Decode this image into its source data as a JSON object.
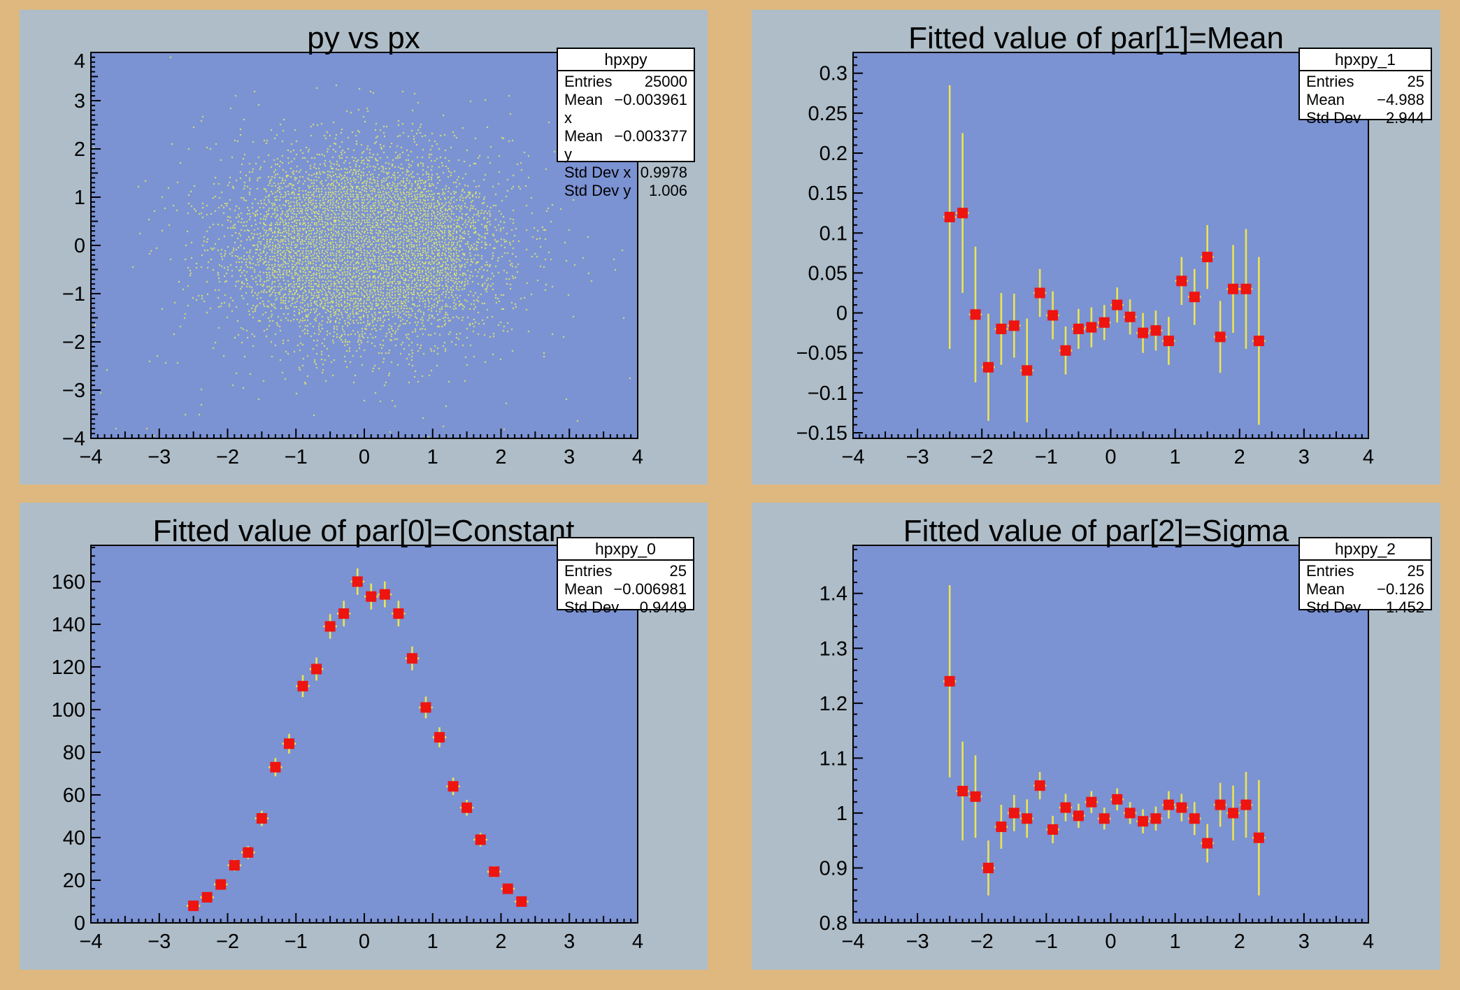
{
  "colors": {
    "canvas_bg": "#dfb87f",
    "pad_bg": "#aebdc8",
    "frame_bg": "#7b92d3",
    "marker_red": "#ee1410",
    "error_bar_yellow": "#ece54f",
    "scatter_dot_yellow": "#e3e86b",
    "stat_box_bg": "#ffffff",
    "text": "#000000"
  },
  "pads": [
    {
      "name": "py-vs-px",
      "title": "py vs px",
      "stats": {
        "title": "hpxpy",
        "rows": [
          {
            "label": "Entries",
            "value": "25000"
          },
          {
            "label": "Mean x",
            "value": "−0.003961"
          },
          {
            "label": "Mean y",
            "value": "−0.003377"
          },
          {
            "label": "Std Dev x",
            "value": "0.9978"
          },
          {
            "label": "Std Dev y",
            "value": "1.006"
          }
        ]
      },
      "chart_data": {
        "type": "heatmap",
        "subtype": "th2-scatter-plot",
        "title": "py vs px",
        "description": "2D Gaussian point cloud (ROOT TH2 scatter draw), 25000 entries, centered at origin",
        "entries": 25000,
        "mean_x": -0.003961,
        "mean_y": -0.003377,
        "std_dev_x": 0.9978,
        "std_dev_y": 1.006,
        "xlim": [
          -4,
          4
        ],
        "ylim": [
          -4,
          4
        ],
        "xticks": [
          -4,
          -3,
          -2,
          -1,
          0,
          1,
          2,
          3,
          4
        ],
        "xtick_labels": [
          "−4",
          "−3",
          "−2",
          "−1",
          "0",
          "1",
          "2",
          "3",
          "4"
        ],
        "yticks": [
          -4,
          -3,
          -2,
          -1,
          0,
          1,
          2,
          3,
          4
        ],
        "ytick_labels": [
          "−4",
          "−3",
          "−2",
          "−1",
          "0",
          "1",
          "2",
          "3",
          "4"
        ],
        "grid": false,
        "legend": false
      }
    },
    {
      "name": "fitted-mean",
      "title": "Fitted value of par[1]=Mean",
      "stats": {
        "title": "hpxpy_1",
        "rows": [
          {
            "label": "Entries",
            "value": "25"
          },
          {
            "label": "Mean",
            "value": "−4.988"
          },
          {
            "label": "Std Dev",
            "value": "2.944"
          }
        ]
      },
      "chart_data": {
        "type": "scatter",
        "title": "Fitted value of par[1]=Mean",
        "x": [
          -2.5,
          -2.3,
          -2.1,
          -1.9,
          -1.7,
          -1.5,
          -1.3,
          -1.1,
          -0.9,
          -0.7,
          -0.5,
          -0.3,
          -0.1,
          0.1,
          0.3,
          0.5,
          0.7,
          0.9,
          1.1,
          1.3,
          1.5,
          1.7,
          1.9,
          2.1,
          2.3
        ],
        "y": [
          0.12,
          0.125,
          -0.002,
          -0.068,
          -0.02,
          -0.016,
          -0.072,
          0.025,
          -0.003,
          -0.047,
          -0.02,
          -0.018,
          -0.012,
          0.01,
          -0.005,
          -0.025,
          -0.022,
          -0.035,
          0.04,
          0.02,
          0.07,
          -0.03,
          0.03,
          0.03,
          -0.035
        ],
        "yerr": [
          0.165,
          0.1,
          0.085,
          0.067,
          0.045,
          0.04,
          0.065,
          0.03,
          0.03,
          0.03,
          0.025,
          0.025,
          0.022,
          0.022,
          0.022,
          0.025,
          0.025,
          0.03,
          0.03,
          0.035,
          0.04,
          0.045,
          0.055,
          0.075,
          0.105
        ],
        "xerr": 0.1,
        "xlim": [
          -4,
          4
        ],
        "ylim": [
          -0.157,
          0.326
        ],
        "xticks": [
          -4,
          -3,
          -2,
          -1,
          0,
          1,
          2,
          3,
          4
        ],
        "xtick_labels": [
          "−4",
          "−3",
          "−2",
          "−1",
          "0",
          "1",
          "2",
          "3",
          "4"
        ],
        "yticks": [
          -0.15,
          -0.1,
          -0.05,
          0,
          0.05,
          0.1,
          0.15,
          0.2,
          0.25,
          0.3
        ],
        "ytick_labels": [
          "−0.15",
          "−0.1",
          "−0.05",
          "0",
          "0.05",
          "0.1",
          "0.15",
          "0.2",
          "0.25",
          "0.3"
        ],
        "y_major_step": 0.05,
        "y_minor_step": 0.01,
        "grid": false,
        "legend": false
      }
    },
    {
      "name": "fitted-constant",
      "title": "Fitted value of par[0]=Constant",
      "stats": {
        "title": "hpxpy_0",
        "rows": [
          {
            "label": "Entries",
            "value": "25"
          },
          {
            "label": "Mean",
            "value": "−0.006981"
          },
          {
            "label": "Std Dev",
            "value": "0.9449"
          }
        ]
      },
      "chart_data": {
        "type": "scatter",
        "title": "Fitted value of par[0]=Constant",
        "x": [
          -2.5,
          -2.3,
          -2.1,
          -1.9,
          -1.7,
          -1.5,
          -1.3,
          -1.1,
          -0.9,
          -0.7,
          -0.5,
          -0.3,
          -0.1,
          0.1,
          0.3,
          0.5,
          0.7,
          0.9,
          1.1,
          1.3,
          1.5,
          1.7,
          1.9,
          2.1,
          2.3
        ],
        "y": [
          8,
          12,
          18,
          27,
          33,
          49,
          73,
          84,
          111,
          119,
          139,
          145,
          160,
          153,
          154,
          145,
          124,
          101,
          87,
          64,
          54,
          39,
          24,
          16,
          10
        ],
        "yerr": [
          1.6,
          1.9,
          2.3,
          2.7,
          3.0,
          3.6,
          4.3,
          4.6,
          5.2,
          5.4,
          5.8,
          6.0,
          6.2,
          6.1,
          6.1,
          6.0,
          5.6,
          5.1,
          4.7,
          4.1,
          3.7,
          3.2,
          2.6,
          2.1,
          1.7
        ],
        "xerr": 0.1,
        "xlim": [
          -4,
          4
        ],
        "ylim": [
          0,
          177
        ],
        "xticks": [
          -4,
          -3,
          -2,
          -1,
          0,
          1,
          2,
          3,
          4
        ],
        "xtick_labels": [
          "−4",
          "−3",
          "−2",
          "−1",
          "0",
          "1",
          "2",
          "3",
          "4"
        ],
        "yticks": [
          0,
          20,
          40,
          60,
          80,
          100,
          120,
          140,
          160
        ],
        "ytick_labels": [
          "0",
          "20",
          "40",
          "60",
          "80",
          "100",
          "120",
          "140",
          "160"
        ],
        "y_major_step": 20,
        "y_minor_step": 4,
        "grid": false,
        "legend": false
      }
    },
    {
      "name": "fitted-sigma",
      "title": "Fitted value of par[2]=Sigma",
      "stats": {
        "title": "hpxpy_2",
        "rows": [
          {
            "label": "Entries",
            "value": "25"
          },
          {
            "label": "Mean",
            "value": "−0.126"
          },
          {
            "label": "Std Dev",
            "value": "1.452"
          }
        ]
      },
      "chart_data": {
        "type": "scatter",
        "title": "Fitted value of par[2]=Sigma",
        "x": [
          -2.5,
          -2.3,
          -2.1,
          -1.9,
          -1.7,
          -1.5,
          -1.3,
          -1.1,
          -0.9,
          -0.7,
          -0.5,
          -0.3,
          -0.1,
          0.1,
          0.3,
          0.5,
          0.7,
          0.9,
          1.1,
          1.3,
          1.5,
          1.7,
          1.9,
          2.1,
          2.3
        ],
        "y": [
          1.24,
          1.04,
          1.03,
          0.9,
          0.975,
          1.0,
          0.99,
          1.05,
          0.97,
          1.01,
          0.995,
          1.02,
          0.99,
          1.025,
          1.0,
          0.985,
          0.99,
          1.015,
          1.01,
          0.99,
          0.945,
          1.015,
          1.0,
          1.015,
          0.955
        ],
        "yerr": [
          0.175,
          0.09,
          0.075,
          0.05,
          0.04,
          0.033,
          0.035,
          0.025,
          0.025,
          0.025,
          0.022,
          0.02,
          0.02,
          0.02,
          0.02,
          0.022,
          0.022,
          0.025,
          0.025,
          0.03,
          0.035,
          0.04,
          0.05,
          0.06,
          0.105
        ],
        "xerr": 0.1,
        "xlim": [
          -4,
          4
        ],
        "ylim": [
          0.8,
          1.4875
        ],
        "xticks": [
          -4,
          -3,
          -2,
          -1,
          0,
          1,
          2,
          3,
          4
        ],
        "xtick_labels": [
          "−4",
          "−3",
          "−2",
          "−1",
          "0",
          "1",
          "2",
          "3",
          "4"
        ],
        "yticks": [
          0.8,
          0.9,
          1,
          1.1,
          1.2,
          1.3,
          1.4
        ],
        "ytick_labels": [
          "0.8",
          "0.9",
          "1",
          "1.1",
          "1.2",
          "1.3",
          "1.4"
        ],
        "y_major_step": 0.1,
        "y_minor_step": 0.02,
        "grid": false,
        "legend": false
      }
    }
  ]
}
